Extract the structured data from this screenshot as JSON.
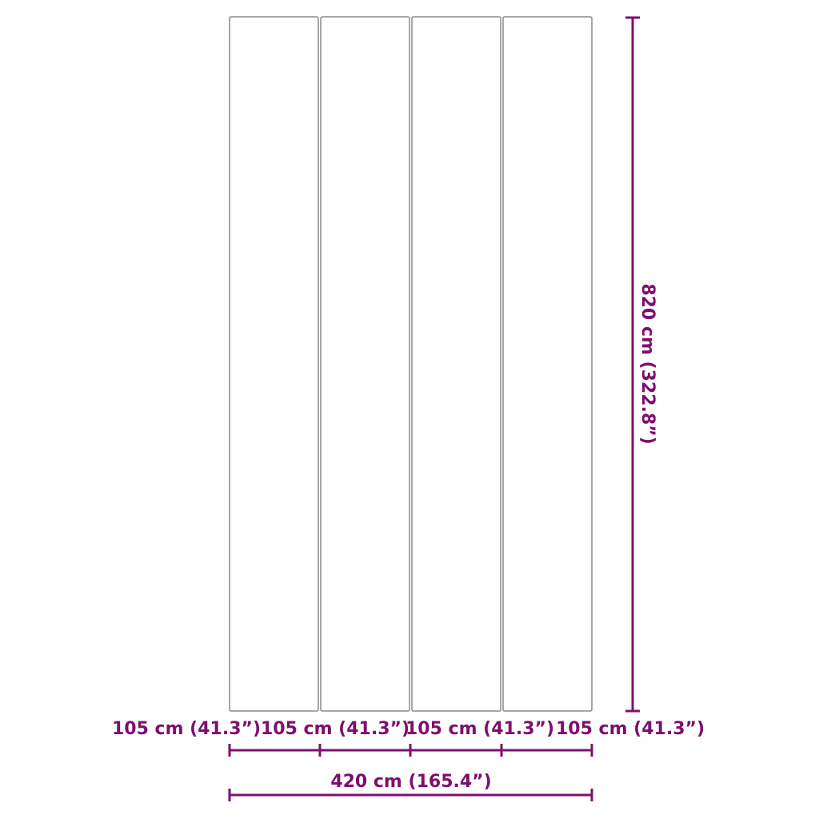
{
  "panel_widths": [
    {
      "label": "105 cm (41.3”)"
    },
    {
      "label": "105 cm (41.3”)"
    },
    {
      "label": "105 cm (41.3”)"
    },
    {
      "label": "105 cm (41.3”)"
    }
  ],
  "total_width": {
    "label": "420 cm (165.4”)"
  },
  "height": {
    "label": "820 cm (322.8”)"
  },
  "colors": {
    "dimension": "#7d0f6f",
    "panel_border": "#8a8a8a"
  }
}
